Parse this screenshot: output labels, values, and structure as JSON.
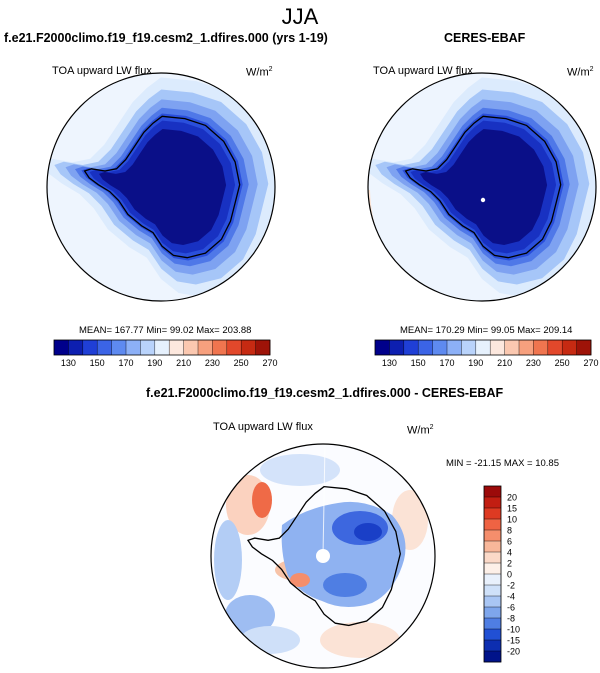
{
  "figure_title": "JJA",
  "chart_data": [
    {
      "type": "heatmap",
      "projection": "south-polar-stereographic",
      "title": "f.e21.F2000climo.f19_f19.cesm2_1.dfires.000 (yrs 1-19)",
      "variable": "TOA upward LW flux",
      "units": "W/m",
      "units_exp": "2",
      "stats": {
        "mean": "167.77",
        "min": "99.02",
        "max": "203.88"
      },
      "stats_text": "MEAN= 167.77  Min=  99.02  Max= 203.88",
      "colorbar": {
        "orientation": "horizontal",
        "colors": [
          "#00008b",
          "#0d1fb0",
          "#1f3fd6",
          "#3b64e6",
          "#5e8af0",
          "#8cb0f7",
          "#b9d3fb",
          "#e6f1fd",
          "#fde8de",
          "#fbc8b0",
          "#f7a07e",
          "#f0754f",
          "#e2482b",
          "#c62a12",
          "#9e1308"
        ],
        "labels": [
          "130",
          "150",
          "170",
          "190",
          "210",
          "230",
          "250",
          "270"
        ]
      },
      "contour_bands": [
        {
          "value": 195,
          "color": "#dcebfd"
        },
        {
          "value": 185,
          "color": "#a6c6f8"
        },
        {
          "value": 175,
          "color": "#7ea2f1"
        },
        {
          "value": 165,
          "color": "#4f78e8"
        },
        {
          "value": 150,
          "color": "#2a4fdc"
        },
        {
          "value": 135,
          "color": "#1831c2"
        },
        {
          "value": 115,
          "color": "#0a0f88"
        }
      ]
    },
    {
      "type": "heatmap",
      "projection": "south-polar-stereographic",
      "title": "CERES-EBAF",
      "variable": "TOA upward LW flux",
      "units": "W/m",
      "units_exp": "2",
      "stats": {
        "mean": "170.29",
        "min": "99.05",
        "max": "209.14"
      },
      "stats_text": "MEAN= 170.29  Min=  99.05  Max= 209.14",
      "colorbar": {
        "orientation": "horizontal",
        "colors": [
          "#00008b",
          "#0d1fb0",
          "#1f3fd6",
          "#3b64e6",
          "#5e8af0",
          "#8cb0f7",
          "#b9d3fb",
          "#e6f1fd",
          "#fde8de",
          "#fbc8b0",
          "#f7a07e",
          "#f0754f",
          "#e2482b",
          "#c62a12",
          "#9e1308"
        ],
        "labels": [
          "130",
          "150",
          "170",
          "190",
          "210",
          "230",
          "250",
          "270"
        ]
      },
      "contour_bands": [
        {
          "value": 200,
          "color": "#dcebfd"
        },
        {
          "value": 185,
          "color": "#a6c6f8"
        },
        {
          "value": 175,
          "color": "#7ea2f1"
        },
        {
          "value": 165,
          "color": "#4f78e8"
        },
        {
          "value": 150,
          "color": "#2a4fdc"
        },
        {
          "value": 135,
          "color": "#1831c2"
        },
        {
          "value": 115,
          "color": "#0a0f88"
        }
      ]
    },
    {
      "type": "heatmap",
      "projection": "south-polar-stereographic",
      "title": "f.e21.F2000climo.f19_f19.cesm2_1.dfires.000 - CERES-EBAF",
      "variable": "TOA upward LW flux",
      "units": "W/m",
      "units_exp": "2",
      "stats": {
        "min": "-21.15",
        "max": "10.85"
      },
      "stats_text": "MIN = -21.15 MAX =  10.85",
      "colorbar": {
        "orientation": "vertical",
        "colors": [
          "#9c0a0a",
          "#c21e12",
          "#de3a22",
          "#ef6343",
          "#f58e6c",
          "#f8b79a",
          "#fbd9c8",
          "#fdf0e8",
          "#e9f1fc",
          "#cfe1f9",
          "#a9c6f4",
          "#7ea6ec",
          "#4f7ee3",
          "#2150d4",
          "#0d2eb0",
          "#00138a"
        ],
        "labels": [
          "20",
          "15",
          "10",
          "8",
          "6",
          "4",
          "2",
          "0",
          "-2",
          "-4",
          "-6",
          "-8",
          "-10",
          "-15",
          "-20"
        ]
      }
    }
  ]
}
